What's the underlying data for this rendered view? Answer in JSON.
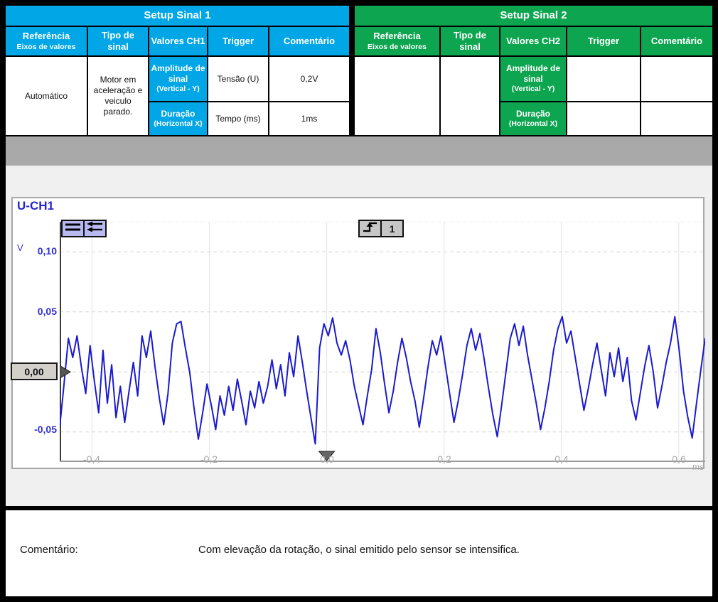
{
  "tables": {
    "signal1": {
      "title": "Setup Sinal 1",
      "accent": "#00a6e6",
      "headers": [
        {
          "main": "Referência",
          "sub": "Eixos de valores"
        },
        {
          "main": "Tipo de sinal"
        },
        {
          "main": "Valores CH1"
        },
        {
          "main": "Trigger"
        },
        {
          "main": "Comentário"
        }
      ],
      "rows": [
        {
          "ref_main": "Amplitude de sinal",
          "ref_sub": "(Vertical - Y)",
          "tipo": "Tensão (U)",
          "valor": "0,2V"
        },
        {
          "ref_main": "Duração",
          "ref_sub": "(Horizontal X)",
          "tipo": "Tempo (ms)",
          "valor": "1ms"
        }
      ],
      "trigger_value": "Automático",
      "comment_value": "Motor em aceleração e veiculo parado."
    },
    "signal2": {
      "title": "Setup Sinal 2",
      "accent": "#0ea551",
      "headers": [
        {
          "main": "Referência",
          "sub": "Eixos de valores"
        },
        {
          "main": "Tipo de sinal"
        },
        {
          "main": "Valores CH2"
        },
        {
          "main": "Trigger"
        },
        {
          "main": "Comentário"
        }
      ],
      "rows": [
        {
          "ref_main": "Amplitude de sinal",
          "ref_sub": "(Vertical - Y)",
          "tipo": "",
          "valor": ""
        },
        {
          "ref_main": "Duração",
          "ref_sub": "(Horizontal X)",
          "tipo": "",
          "valor": ""
        }
      ],
      "trigger_value": "",
      "comment_value": ""
    }
  },
  "scope": {
    "channel_label": "U-CH1",
    "y_unit": "V",
    "x_unit": "ms",
    "y_tick_labels": [
      "0,10",
      "0,05",
      "-0,05"
    ],
    "zero_label": "0,00",
    "x_tick_labels": [
      "-0,4",
      "-0,2",
      "0,0",
      "0,2",
      "0,4",
      "0,6"
    ],
    "trigger_channel": "1",
    "icons": [
      "channel-menu-icon",
      "pan-left-icon",
      "rising-edge-trigger-icon"
    ],
    "colors": {
      "trace": "#1a1ad1",
      "axis_label_blue": "#3030d8",
      "tick_gray": "#a8a8a8",
      "button_lavender": "#b9b9f2",
      "button_gray": "#c6c6c6"
    }
  },
  "chart_data": {
    "type": "line",
    "title": "U-CH1",
    "xlabel": "ms",
    "ylabel": "V",
    "xlim": [
      -0.455,
      0.645
    ],
    "ylim": [
      -0.075,
      0.125
    ],
    "x_ticks": [
      -0.4,
      -0.2,
      0.0,
      0.2,
      0.4,
      0.6
    ],
    "y_ticks": [
      0.1,
      0.05,
      0.0,
      -0.05
    ],
    "y_grid": [
      0.125,
      0.1,
      0.05,
      0.0,
      -0.05
    ],
    "trigger_time": 0.0,
    "trigger_level": 0.0,
    "grid": true,
    "legend": "none",
    "series": [
      {
        "name": "U-CH1",
        "x_start": -0.455,
        "x_end": 0.645,
        "values": [
          -0.046,
          -0.01,
          0.028,
          0.012,
          0.03,
          0.004,
          -0.018,
          0.022,
          -0.008,
          -0.034,
          0.018,
          -0.026,
          0.006,
          -0.038,
          -0.012,
          -0.042,
          -0.016,
          0.008,
          -0.02,
          0.03,
          0.012,
          0.034,
          0.004,
          -0.022,
          -0.044,
          -0.018,
          0.024,
          0.04,
          0.042,
          0.02,
          0.0,
          -0.03,
          -0.056,
          -0.034,
          -0.01,
          -0.028,
          -0.048,
          -0.02,
          -0.036,
          -0.012,
          -0.032,
          -0.006,
          -0.024,
          -0.044,
          -0.016,
          -0.03,
          -0.008,
          -0.026,
          -0.012,
          0.01,
          -0.014,
          0.006,
          -0.02,
          0.016,
          -0.004,
          0.03,
          0.008,
          -0.016,
          -0.038,
          -0.06,
          0.02,
          0.04,
          0.03,
          0.045,
          0.024,
          0.014,
          0.026,
          0.01,
          -0.012,
          -0.028,
          -0.044,
          -0.02,
          0.002,
          0.036,
          0.016,
          -0.01,
          -0.034,
          -0.016,
          0.008,
          0.028,
          0.012,
          -0.008,
          -0.024,
          -0.046,
          -0.022,
          0.004,
          0.026,
          0.014,
          0.03,
          0.006,
          -0.018,
          -0.042,
          -0.024,
          -0.002,
          0.022,
          0.036,
          0.018,
          0.032,
          0.01,
          -0.014,
          -0.036,
          -0.054,
          -0.028,
          0.0,
          0.028,
          0.04,
          0.022,
          0.038,
          0.014,
          -0.006,
          -0.026,
          -0.048,
          -0.03,
          -0.008,
          0.018,
          0.036,
          0.046,
          0.024,
          0.034,
          0.012,
          -0.01,
          -0.032,
          -0.014,
          0.006,
          0.024,
          0.002,
          -0.02,
          0.016,
          -0.004,
          0.02,
          -0.008,
          0.012,
          -0.024,
          -0.04,
          -0.018,
          0.004,
          0.022,
          0.0,
          -0.03,
          -0.012,
          0.008,
          0.024,
          0.046,
          0.018,
          -0.016,
          -0.038,
          -0.055,
          -0.026,
          0.002,
          0.028
        ]
      }
    ]
  },
  "comment_section": {
    "label": "Comentário:",
    "text": "Com elevação da rotação, o sinal emitido pelo sensor se intensifica."
  }
}
